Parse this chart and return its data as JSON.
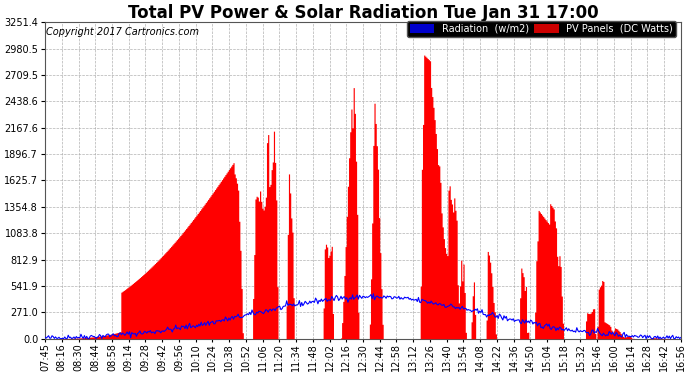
{
  "title": "Total PV Power & Solar Radiation Tue Jan 31 17:00",
  "copyright": "Copyright 2017 Cartronics.com",
  "legend_items": [
    "Radiation  (w/m2)",
    "PV Panels  (DC Watts)"
  ],
  "ylim": [
    0,
    3251.4
  ],
  "yticks": [
    0.0,
    271.0,
    541.9,
    812.9,
    1083.8,
    1354.8,
    1625.7,
    1896.7,
    2167.6,
    2438.6,
    2709.5,
    2980.5,
    3251.4
  ],
  "ytick_labels": [
    "0.0",
    "271.0",
    "541.9",
    "812.9",
    "1083.8",
    "1354.8",
    "1625.7",
    "1896.7",
    "2167.6",
    "2438.6",
    "2709.5",
    "2980.5",
    "3251.4"
  ],
  "xtick_labels": [
    "07:45",
    "08:16",
    "08:30",
    "08:44",
    "08:58",
    "09:14",
    "09:28",
    "09:42",
    "09:56",
    "10:10",
    "10:24",
    "10:38",
    "10:52",
    "11:06",
    "11:20",
    "11:34",
    "11:48",
    "12:02",
    "12:16",
    "12:30",
    "12:44",
    "12:58",
    "13:12",
    "13:26",
    "13:40",
    "13:54",
    "14:08",
    "14:22",
    "14:36",
    "14:50",
    "15:04",
    "15:18",
    "15:32",
    "15:46",
    "16:00",
    "16:14",
    "16:28",
    "16:42",
    "16:56"
  ],
  "pv_color": "#ff0000",
  "radiation_color": "#0000ff",
  "background_color": "#ffffff",
  "grid_color": "#aaaaaa",
  "title_fontsize": 12,
  "tick_fontsize": 7.0,
  "copyright_fontsize": 7.0,
  "legend_colors": [
    "#0000cc",
    "#cc0000"
  ]
}
